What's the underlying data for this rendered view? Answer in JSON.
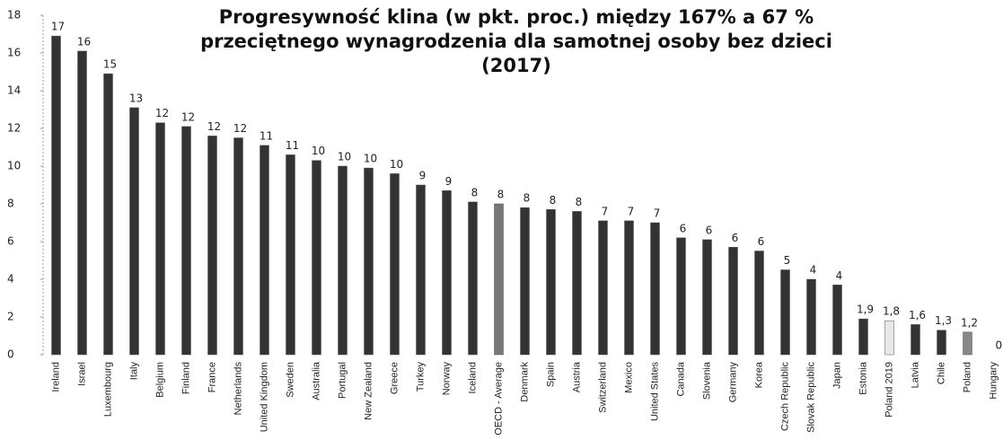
{
  "chart_data": {
    "type": "bar",
    "title": [
      "Progresywność klina (w pkt. proc.) między 167% a 67 %",
      "przeciętnego wynagrodzenia dla samotnej osoby bez dzieci",
      "(2017)"
    ],
    "categories": [
      "Ireland",
      "Israel",
      "Luxembourg",
      "Italy",
      "Belgium",
      "Finland",
      "France",
      "Netherlands",
      "United Kingdom",
      "Sweden",
      "Australia",
      "Portugal",
      "New Zealand",
      "Greece",
      "Turkey",
      "Norway",
      "Iceland",
      "OECD - Average",
      "Denmark",
      "Spain",
      "Austria",
      "Switzerland",
      "Mexico",
      "United States",
      "Canada",
      "Slovenia",
      "Germany",
      "Korea",
      "Czech Republic",
      "Slovak Republic",
      "Japan",
      "Estonia",
      "Poland 2019",
      "Latvia",
      "Chile",
      "Poland",
      "Hungary"
    ],
    "values": [
      16.9,
      16.1,
      14.9,
      13.1,
      12.3,
      12.1,
      11.6,
      11.5,
      11.1,
      10.6,
      10.3,
      10.0,
      9.9,
      9.6,
      9.0,
      8.7,
      8.1,
      8.0,
      7.8,
      7.7,
      7.6,
      7.1,
      7.1,
      7.0,
      6.2,
      6.1,
      5.7,
      5.5,
      4.5,
      4.0,
      3.7,
      1.9,
      1.8,
      1.6,
      1.3,
      1.2,
      0.0
    ],
    "value_labels": [
      "17",
      "16",
      "15",
      "13",
      "12",
      "12",
      "12",
      "12",
      "11",
      "11",
      "10",
      "10",
      "10",
      "10",
      "9",
      "9",
      "8",
      "8",
      "8",
      "8",
      "8",
      "7",
      "7",
      "7",
      "6",
      "6",
      "6",
      "6",
      "5",
      "4",
      "4",
      "1,9",
      "1,8",
      "1,6",
      "1,3",
      "1,2",
      "0,0"
    ],
    "colors": [
      "#333",
      "#333",
      "#333",
      "#333",
      "#333",
      "#333",
      "#333",
      "#333",
      "#333",
      "#333",
      "#333",
      "#333",
      "#333",
      "#333",
      "#333",
      "#333",
      "#333",
      "#777",
      "#333",
      "#333",
      "#333",
      "#333",
      "#333",
      "#333",
      "#333",
      "#333",
      "#333",
      "#333",
      "#333",
      "#333",
      "#333",
      "#333",
      "#e8e8e8",
      "#333",
      "#333",
      "#888",
      "#333"
    ],
    "ylim": [
      0,
      18
    ],
    "yticks": [
      0,
      2,
      4,
      6,
      8,
      10,
      12,
      14,
      16,
      18
    ]
  }
}
